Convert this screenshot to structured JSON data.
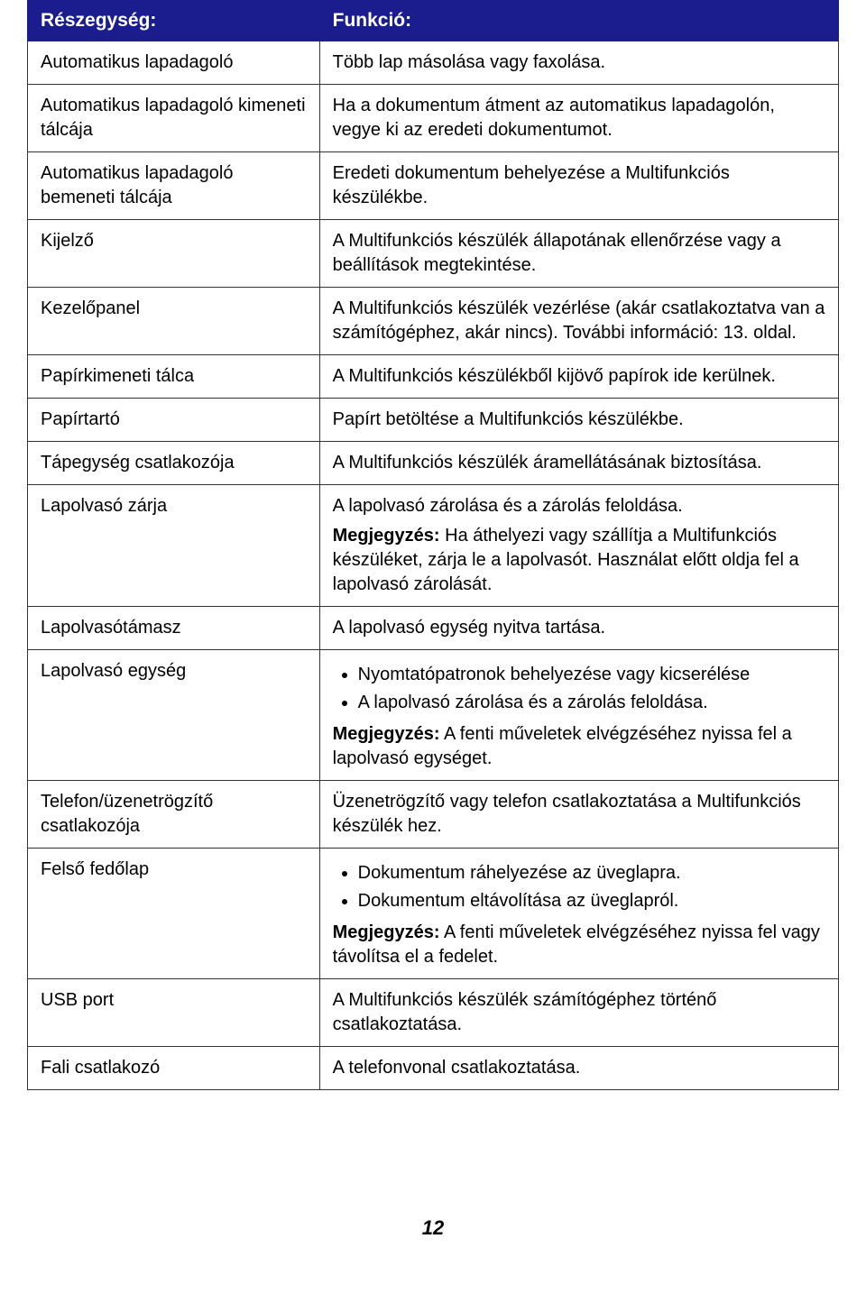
{
  "header": {
    "col1": "Részegység:",
    "col2": "Funkció:"
  },
  "rows": [
    {
      "part": "Automatikus lapadagoló",
      "func": "Több lap másolása vagy faxolása."
    },
    {
      "part": "Automatikus lapadagoló kimeneti tálcája",
      "func": "Ha a dokumentum átment az automatikus lapadagolón, vegye ki az eredeti dokumentumot."
    },
    {
      "part": "Automatikus lapadagoló bemeneti tálcája",
      "func": "Eredeti dokumentum behelyezése a Multifunkciós készülékbe."
    },
    {
      "part": "Kijelző",
      "func": "A Multifunkciós készülék állapotának ellenőrzése vagy a beállítások megtekintése."
    },
    {
      "part": "Kezelőpanel",
      "func": "A Multifunkciós készülék vezérlése (akár csatlakoztatva van a számítógéphez, akár nincs). További információ: 13. oldal."
    },
    {
      "part": "Papírkimeneti tálca",
      "func": "A Multifunkciós készülékből kijövő papírok ide kerülnek."
    },
    {
      "part": "Papírtartó",
      "func": "Papírt betöltése a Multifunkciós készülékbe."
    },
    {
      "part": "Tápegység csatlakozója",
      "func": "A Multifunkciós készülék áramellátásának biztosítása."
    },
    {
      "part": "Lapolvasó zárja",
      "func_line": "A lapolvasó zárolása és a zárolás feloldása.",
      "note_label": "Megjegyzés:",
      "note_text": " Ha áthelyezi vagy szállítja a Multifunkciós készüléket, zárja le a lapolvasót. Használat előtt oldja fel a lapolvasó zárolását."
    },
    {
      "part": "Lapolvasótámasz",
      "func": "A lapolvasó egység nyitva tartása."
    },
    {
      "part": "Lapolvasó egység",
      "bullet1": "Nyomtatópatronok behelyezése vagy kicserélése",
      "bullet2": "A lapolvasó zárolása és a zárolás feloldása.",
      "note_label": "Megjegyzés:",
      "note_text": " A fenti műveletek elvégzéséhez nyissa fel a lapolvasó egységet."
    },
    {
      "part": "Telefon/üzenetrögzítő csatlakozója",
      "func": "Üzenetrögzítő vagy telefon csatlakoztatása a Multifunkciós készülék hez."
    },
    {
      "part": "Felső fedőlap",
      "bullet1": "Dokumentum ráhelyezése az üveglapra.",
      "bullet2": "Dokumentum eltávolítása az üveglapról.",
      "note_label": "Megjegyzés:",
      "note_text": " A fenti műveletek elvégzéséhez nyissa fel vagy távolítsa el a fedelet."
    },
    {
      "part": "USB port",
      "func": "A Multifunkciós készülék számítógéphez történő csatlakoztatása."
    },
    {
      "part": "Fali csatlakozó",
      "func": "A telefonvonal csatlakoztatása."
    }
  ],
  "page_number": "12",
  "style": {
    "header_bg": "#1b1d8f",
    "header_fg": "#ffffff",
    "border_color": "#333333",
    "font_size_body": 20,
    "font_size_header": 21
  }
}
